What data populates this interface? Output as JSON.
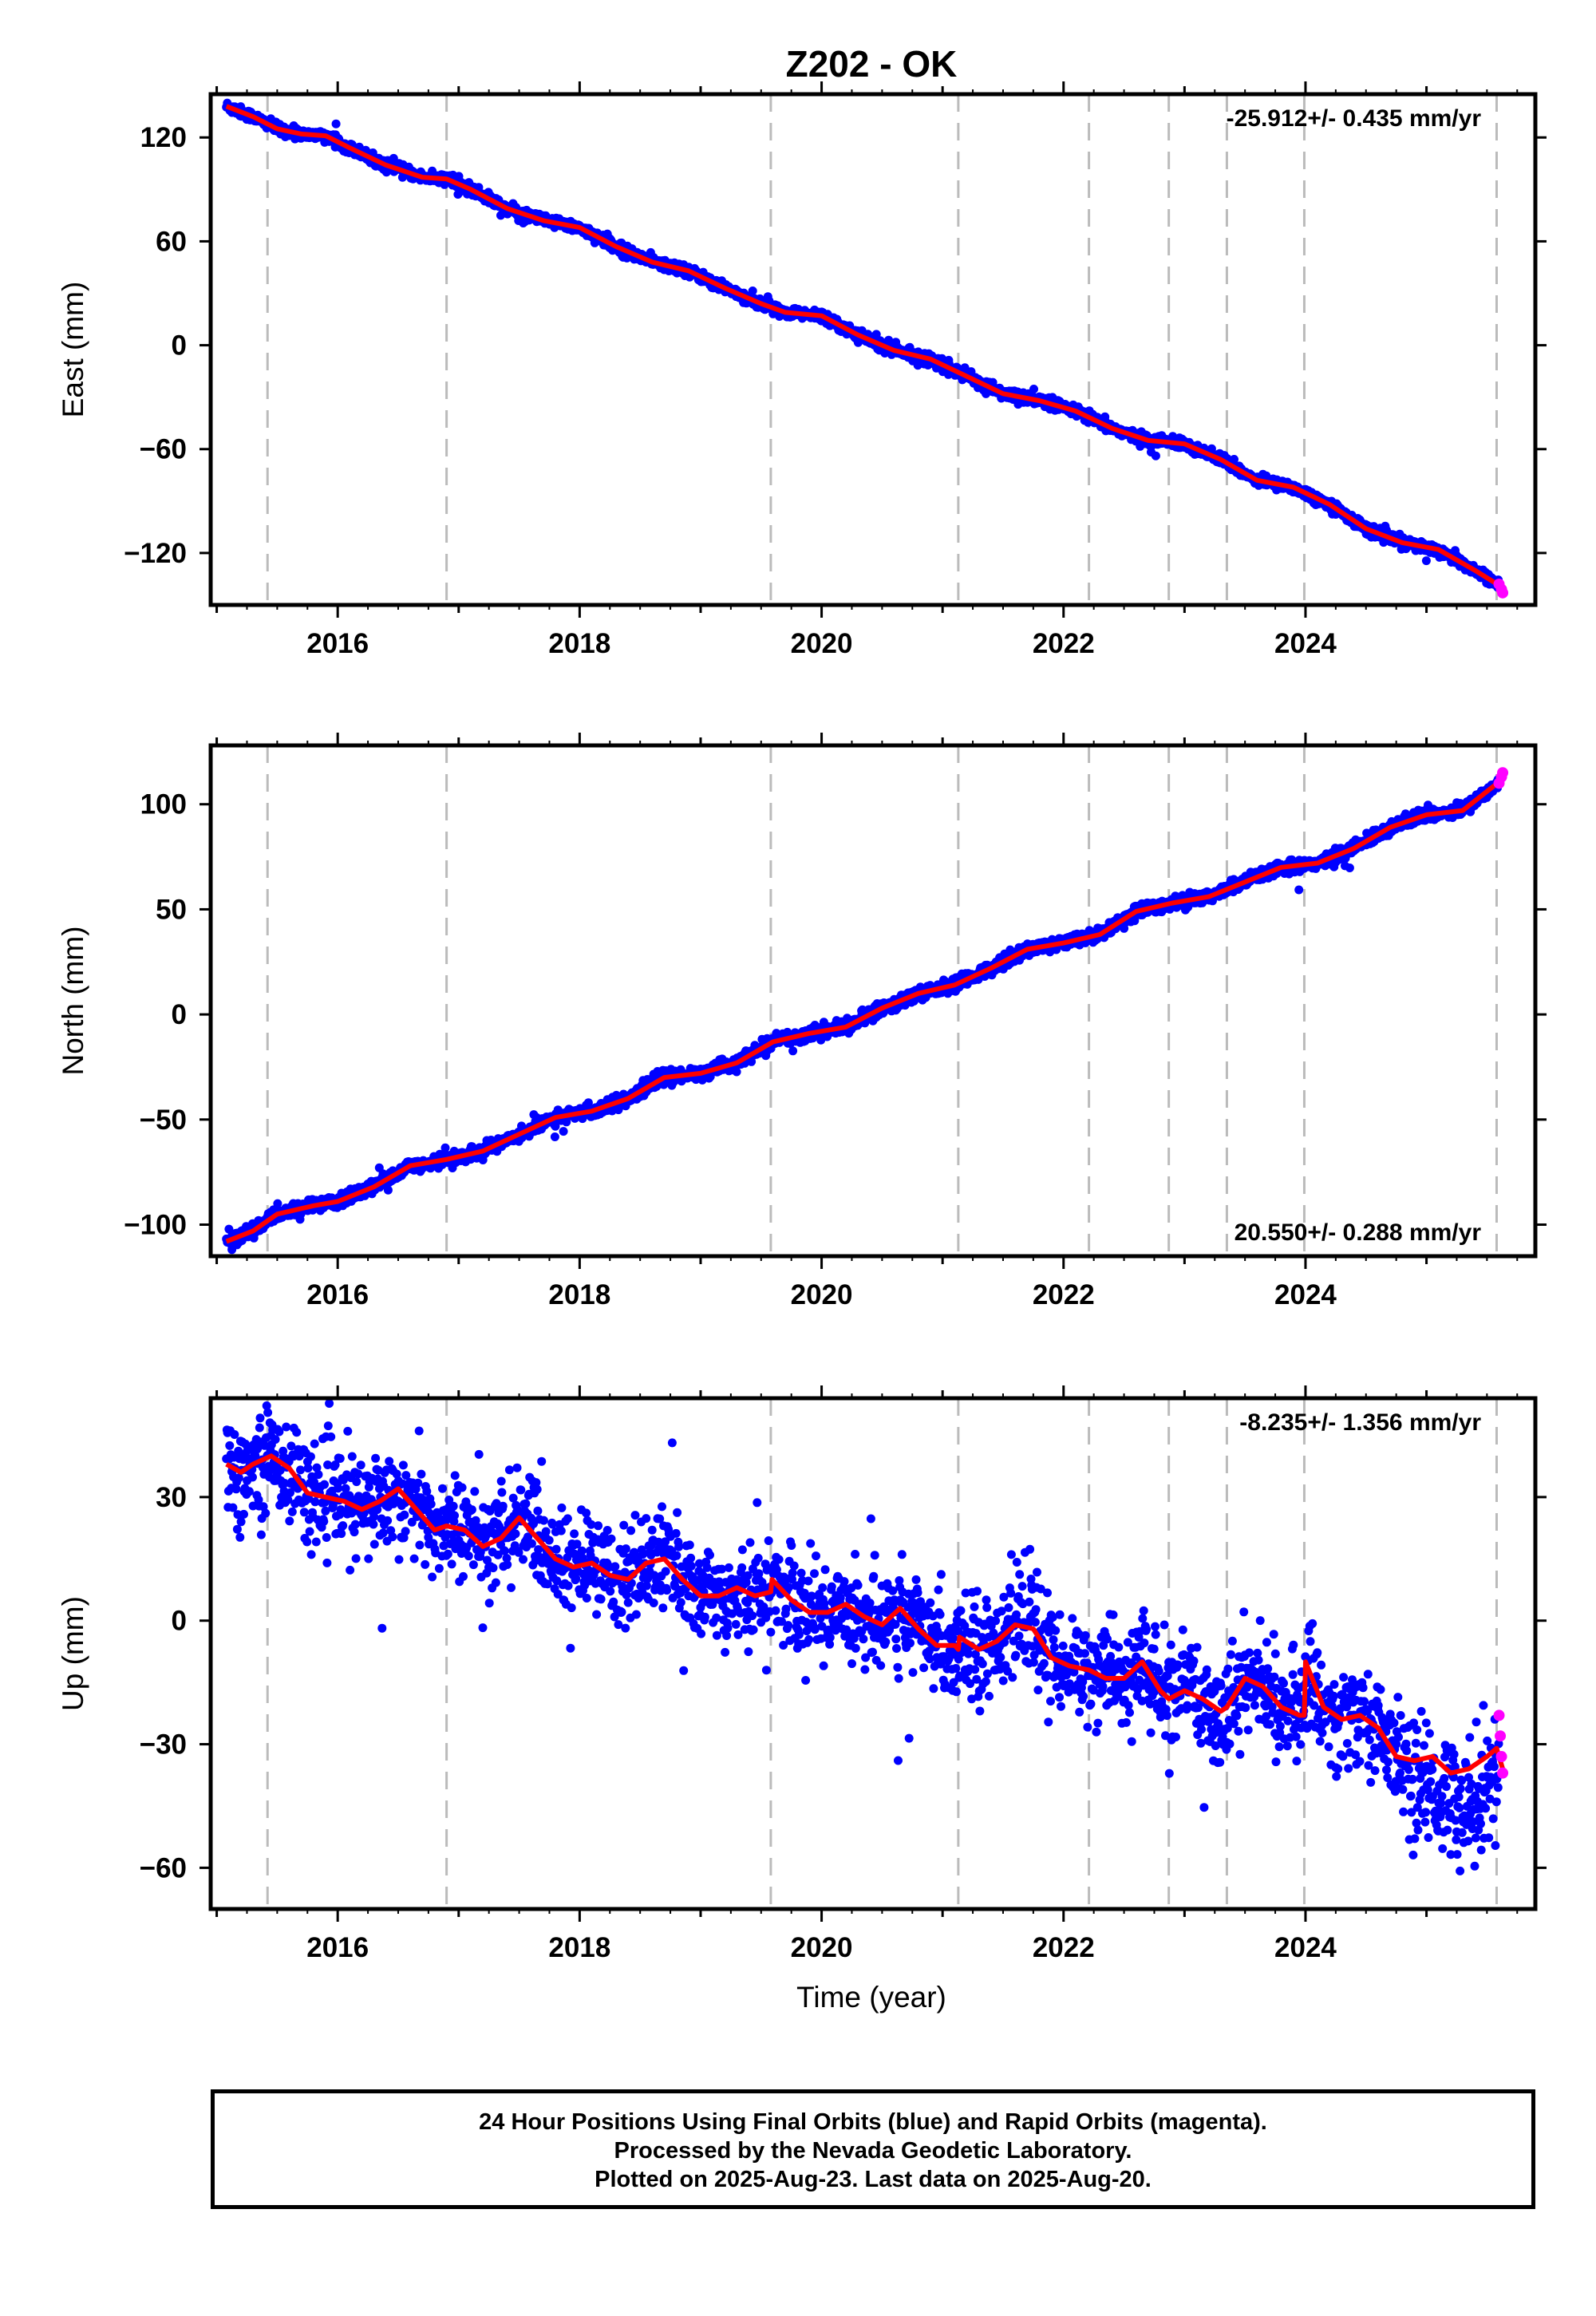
{
  "title": "Z202 - OK",
  "xlabel": "Time (year)",
  "caption": {
    "line1": "24 Hour Positions Using Final Orbits (blue) and Rapid Orbits (magenta).",
    "line2": "Processed by the Nevada Geodetic Laboratory.",
    "line3": "Plotted on 2025-Aug-23. Last data on 2025-Aug-20."
  },
  "colors": {
    "final": "#0000ff",
    "rapid": "#ff00ff",
    "model": "#ff0000",
    "events": "#bbbbbb",
    "frame": "#000000"
  },
  "chart_data": [
    {
      "type": "scatter",
      "component": "East",
      "ylabel": "East (mm)",
      "rate_label": "-25.912+/- 0.435 mm/yr",
      "rate_mm_per_yr": -25.912,
      "rate_sigma": 0.435,
      "xlim": [
        2014.95,
        2025.9
      ],
      "ylim": [
        -150,
        145
      ],
      "yticks": [
        -120,
        -60,
        0,
        60,
        120
      ],
      "xticks": [
        2016,
        2018,
        2020,
        2022,
        2024
      ],
      "events": [
        2015.42,
        2016.9,
        2019.58,
        2021.13,
        2022.21,
        2022.87,
        2023.35,
        2023.99,
        2025.58
      ],
      "model_x": [
        2015.08,
        2015.3,
        2015.5,
        2015.7,
        2015.9,
        2016.1,
        2016.4,
        2016.7,
        2016.9,
        2017.1,
        2017.4,
        2017.7,
        2018.0,
        2018.3,
        2018.6,
        2018.9,
        2019.2,
        2019.5,
        2019.7,
        2020.0,
        2020.3,
        2020.6,
        2020.9,
        2021.2,
        2021.5,
        2021.8,
        2022.1,
        2022.4,
        2022.7,
        2023.0,
        2023.3,
        2023.6,
        2023.9,
        2024.2,
        2024.5,
        2024.8,
        2025.1,
        2025.4,
        2025.63
      ],
      "model_y": [
        138,
        132,
        125,
        122,
        121,
        114,
        104,
        97,
        96,
        90,
        79,
        72,
        68,
        57,
        48,
        43,
        33,
        24,
        19,
        17,
        6,
        -3,
        -8,
        -18,
        -28,
        -32,
        -38,
        -48,
        -55,
        -57,
        -66,
        -78,
        -82,
        -92,
        -106,
        -114,
        -118,
        -130,
        -140
      ],
      "final_points_note": "",
      "rapid_x": [
        2025.6,
        2025.62,
        2025.63
      ],
      "rapid_y": [
        -138,
        -141,
        -143
      ]
    },
    {
      "type": "scatter",
      "component": "North",
      "ylabel": "North (mm)",
      "rate_label": "20.550+/- 0.288 mm/yr",
      "rate_mm_per_yr": 20.55,
      "rate_sigma": 0.288,
      "xlim": [
        2014.95,
        2025.9
      ],
      "ylim": [
        -115,
        128
      ],
      "yticks": [
        -100,
        -50,
        0,
        50,
        100
      ],
      "xticks": [
        2016,
        2018,
        2020,
        2022,
        2024
      ],
      "events": [
        2015.42,
        2016.9,
        2019.58,
        2021.13,
        2022.21,
        2022.87,
        2023.35,
        2023.99,
        2025.58
      ],
      "model_x": [
        2015.08,
        2015.3,
        2015.5,
        2015.8,
        2016.0,
        2016.3,
        2016.6,
        2016.9,
        2017.2,
        2017.5,
        2017.8,
        2018.1,
        2018.4,
        2018.7,
        2019.0,
        2019.3,
        2019.6,
        2019.9,
        2020.2,
        2020.5,
        2020.8,
        2021.1,
        2021.4,
        2021.7,
        2022.0,
        2022.3,
        2022.6,
        2022.9,
        2023.2,
        2023.5,
        2023.8,
        2024.1,
        2024.4,
        2024.7,
        2025.0,
        2025.3,
        2025.63
      ],
      "model_y": [
        -108,
        -103,
        -95,
        -91,
        -89,
        -82,
        -72,
        -69,
        -65,
        -57,
        -49,
        -46,
        -40,
        -30,
        -28,
        -23,
        -13,
        -9,
        -6,
        3,
        10,
        14,
        22,
        31,
        34,
        38,
        49,
        53,
        56,
        63,
        70,
        72,
        79,
        89,
        95,
        97,
        112
      ],
      "final_points_note": "",
      "rapid_x": [
        2025.6,
        2025.62,
        2025.63
      ],
      "rapid_y": [
        110,
        113,
        115
      ]
    },
    {
      "type": "scatter",
      "component": "Up",
      "ylabel": "Up (mm)",
      "rate_label": "-8.235+/- 1.356 mm/yr",
      "rate_mm_per_yr": -8.235,
      "rate_sigma": 1.356,
      "xlim": [
        2014.95,
        2025.9
      ],
      "ylim": [
        -70,
        54
      ],
      "yticks": [
        -60,
        -30,
        0,
        30
      ],
      "xticks": [
        2016,
        2018,
        2020,
        2022,
        2024
      ],
      "events": [
        2015.42,
        2016.9,
        2019.58,
        2021.13,
        2022.21,
        2022.87,
        2023.35,
        2023.99,
        2025.58
      ],
      "model_x": [
        2015.08,
        2015.2,
        2015.3,
        2015.45,
        2015.6,
        2015.75,
        2015.9,
        2016.05,
        2016.2,
        2016.35,
        2016.5,
        2016.65,
        2016.8,
        2016.9,
        2017.05,
        2017.2,
        2017.35,
        2017.5,
        2017.65,
        2017.8,
        2017.95,
        2018.1,
        2018.25,
        2018.4,
        2018.55,
        2018.7,
        2018.85,
        2019.0,
        2019.15,
        2019.3,
        2019.45,
        2019.58,
        2019.59,
        2019.75,
        2019.9,
        2020.05,
        2020.2,
        2020.35,
        2020.5,
        2020.65,
        2020.8,
        2020.95,
        2021.1,
        2021.13,
        2021.14,
        2021.3,
        2021.45,
        2021.6,
        2021.75,
        2021.9,
        2022.05,
        2022.21,
        2022.35,
        2022.5,
        2022.65,
        2022.8,
        2022.87,
        2023.0,
        2023.15,
        2023.3,
        2023.35,
        2023.5,
        2023.65,
        2023.8,
        2023.95,
        2023.99,
        2024.0,
        2024.15,
        2024.3,
        2024.45,
        2024.6,
        2024.75,
        2024.9,
        2025.05,
        2025.2,
        2025.35,
        2025.5,
        2025.58,
        2025.63
      ],
      "model_y": [
        38,
        36,
        38,
        40,
        37,
        31,
        30,
        29,
        27,
        29,
        32,
        27,
        22,
        23,
        22,
        18,
        20,
        25,
        20,
        15,
        13,
        14,
        11,
        10,
        14,
        15,
        10,
        6,
        6,
        8,
        6,
        7,
        10,
        5,
        2,
        2,
        4,
        1,
        -1,
        3,
        -2,
        -6,
        -6,
        -7,
        -4,
        -7,
        -5,
        -1,
        -2,
        -9,
        -11,
        -12,
        -14,
        -14,
        -10,
        -17,
        -19,
        -17,
        -19,
        -22,
        -21,
        -14,
        -16,
        -21,
        -23,
        -23,
        -10,
        -21,
        -24,
        -23,
        -26,
        -33,
        -34,
        -33,
        -37,
        -36,
        -33,
        -31,
        -36
      ],
      "final_points_note": "",
      "rapid_x": [
        2025.6,
        2025.61,
        2025.62,
        2025.63
      ],
      "rapid_y": [
        -23,
        -28,
        -33,
        -37
      ]
    }
  ]
}
